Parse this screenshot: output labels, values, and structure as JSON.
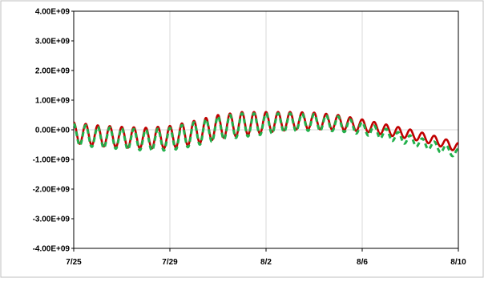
{
  "chart_data": {
    "type": "line",
    "title": "",
    "xlabel": "",
    "ylabel": "",
    "x_ticks": [
      "7/25",
      "7/29",
      "8/2",
      "8/6",
      "8/10"
    ],
    "x_range_days": [
      "7/25",
      "8/10"
    ],
    "ylim": [
      -4000000000,
      4000000000
    ],
    "y_ticks": [
      "4.00E+09",
      "3.00E+09",
      "2.00E+09",
      "1.00E+09",
      "0.00E+00",
      "-1.00E+09",
      "-2.00E+09",
      "-3.00E+09",
      "-4.00E+09"
    ],
    "grid": "vertical and zero line",
    "legend": "none",
    "series": [
      {
        "style": "solid",
        "color": "#c00000",
        "x": [
          "7/25",
          "7/26",
          "7/27",
          "7/28",
          "7/29",
          "7/30",
          "7/31",
          "8/1",
          "8/2",
          "8/3",
          "8/4",
          "8/5",
          "8/6",
          "8/7",
          "8/8",
          "8/9",
          "8/10"
        ],
        "trend": [
          -100000000,
          -200000000,
          -250000000,
          -280000000,
          -250000000,
          -100000000,
          100000000,
          200000000,
          250000000,
          300000000,
          300000000,
          250000000,
          150000000,
          0,
          -150000000,
          -350000000,
          -600000000
        ],
        "amplitude": [
          350000000,
          350000000,
          350000000,
          350000000,
          380000000,
          400000000,
          400000000,
          400000000,
          350000000,
          300000000,
          280000000,
          250000000,
          200000000,
          180000000,
          160000000,
          150000000,
          150000000
        ]
      },
      {
        "style": "dashed",
        "color": "#22b04b",
        "x": [
          "7/25",
          "7/26",
          "7/27",
          "7/28",
          "7/29",
          "7/30",
          "7/31",
          "8/1",
          "8/2",
          "8/3",
          "8/4",
          "8/5",
          "8/6",
          "8/7",
          "8/8",
          "8/9",
          "8/10"
        ],
        "trend": [
          -150000000,
          -250000000,
          -300000000,
          -350000000,
          -320000000,
          -150000000,
          50000000,
          150000000,
          200000000,
          250000000,
          250000000,
          200000000,
          50000000,
          -150000000,
          -350000000,
          -550000000,
          -800000000
        ],
        "amplitude": [
          350000000,
          350000000,
          350000000,
          350000000,
          380000000,
          400000000,
          400000000,
          400000000,
          350000000,
          300000000,
          280000000,
          250000000,
          200000000,
          180000000,
          160000000,
          150000000,
          150000000
        ]
      }
    ],
    "oscillation_period_days": 0.5
  }
}
